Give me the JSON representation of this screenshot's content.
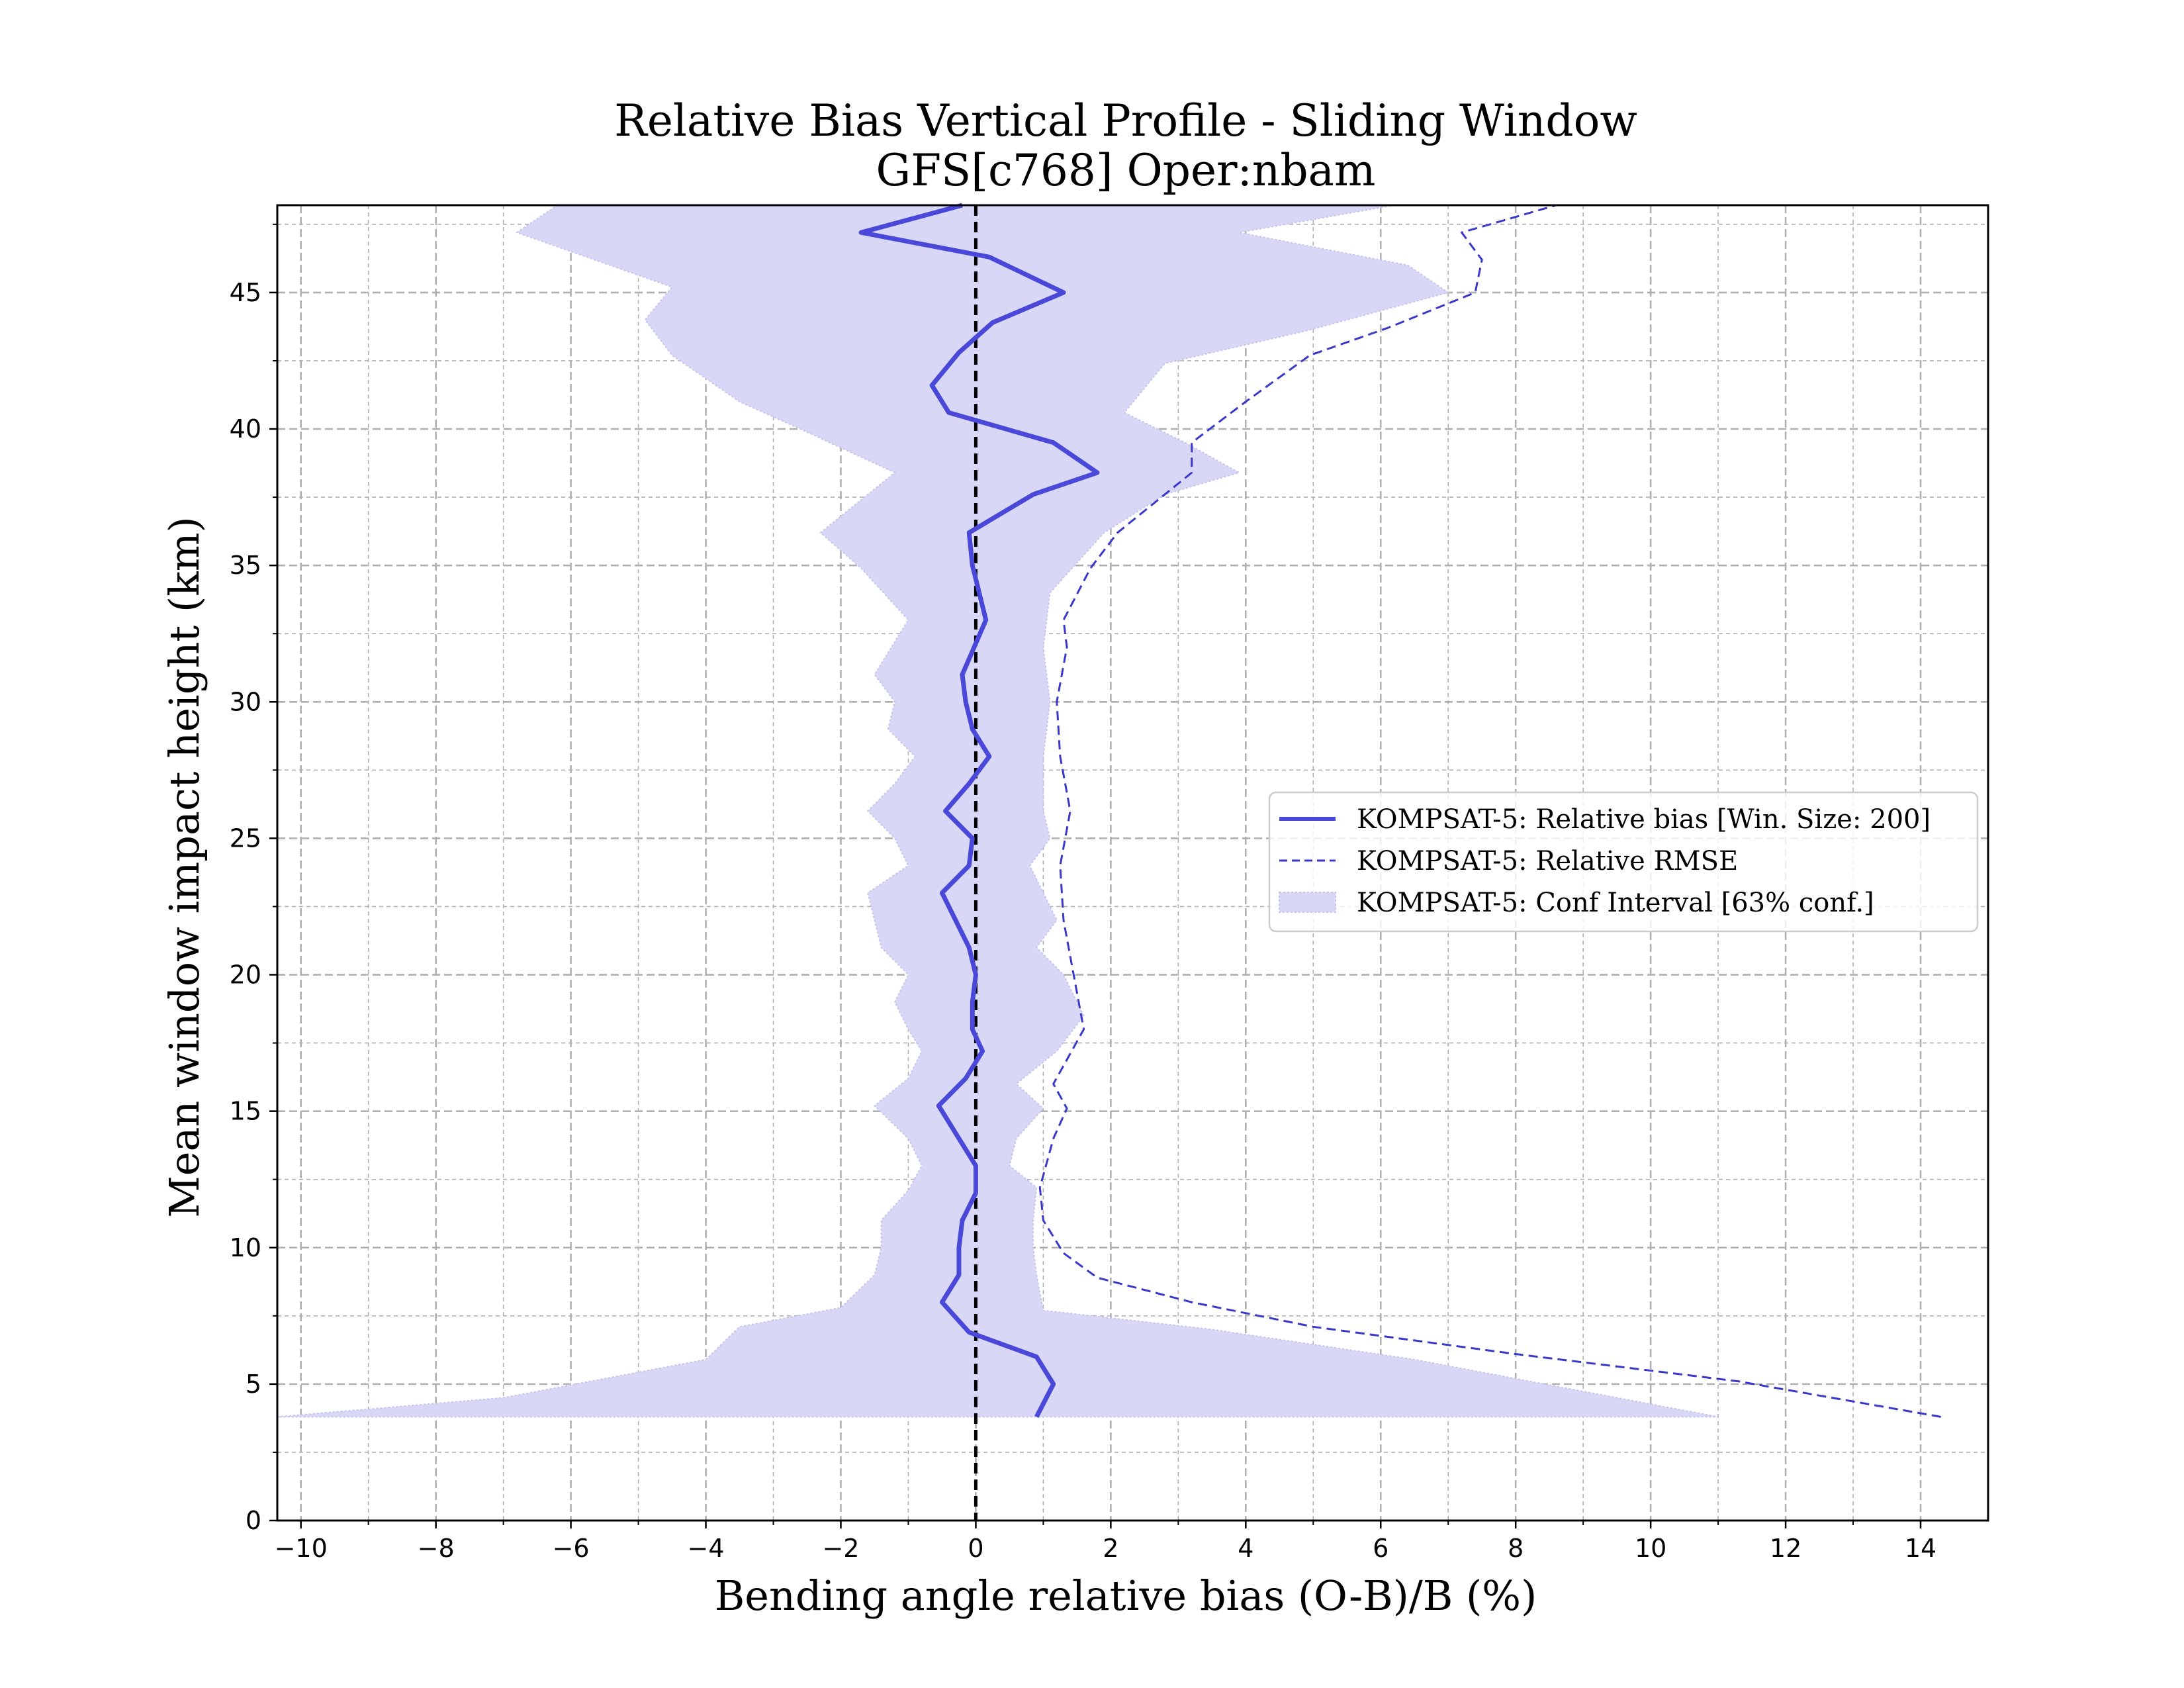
{
  "chart_data": {
    "type": "line",
    "title": "Relative Bias Vertical Profile - Sliding Window",
    "subtitle": "GFS[c768] Oper:nbam",
    "xlabel": "Bending angle relative bias (O-B)/B (%)",
    "ylabel": "Mean window impact height (km)",
    "xlim": [
      -10.35,
      15.0
    ],
    "ylim": [
      0,
      48.2
    ],
    "x_ticks": [
      "−10",
      "−8",
      "−6",
      "−4",
      "−2",
      "0",
      "2",
      "4",
      "6",
      "8",
      "10",
      "12",
      "14"
    ],
    "y_ticks": [
      "0",
      "5",
      "10",
      "15",
      "20",
      "25",
      "30",
      "35",
      "40",
      "45"
    ],
    "grid": true,
    "legend_position": "center-right",
    "reference_line_x": 0,
    "colors": {
      "bias": "#4a48d8",
      "rmse": "#3a38c8",
      "ci_fill": "#d8d8f6",
      "ci_edge": "#c4c4ee",
      "zero_line": "#000000",
      "grid": "#b0b0b0"
    },
    "series": [
      {
        "name": "KOMPSAT-5: Relative bias [Win. Size: 200]",
        "style": "solid",
        "points": [
          {
            "x": 0.9,
            "y": 3.8
          },
          {
            "x": 1.15,
            "y": 5.0
          },
          {
            "x": 0.9,
            "y": 6.0
          },
          {
            "x": -0.1,
            "y": 6.9
          },
          {
            "x": -0.5,
            "y": 8.0
          },
          {
            "x": -0.25,
            "y": 9.0
          },
          {
            "x": -0.25,
            "y": 10.0
          },
          {
            "x": -0.2,
            "y": 11.0
          },
          {
            "x": 0.0,
            "y": 12.0
          },
          {
            "x": 0.0,
            "y": 13.0
          },
          {
            "x": -0.35,
            "y": 14.4
          },
          {
            "x": -0.55,
            "y": 15.2
          },
          {
            "x": -0.15,
            "y": 16.2
          },
          {
            "x": 0.1,
            "y": 17.2
          },
          {
            "x": -0.05,
            "y": 18.0
          },
          {
            "x": -0.05,
            "y": 19.0
          },
          {
            "x": 0.0,
            "y": 20.0
          },
          {
            "x": -0.1,
            "y": 21.0
          },
          {
            "x": -0.5,
            "y": 23.0
          },
          {
            "x": -0.1,
            "y": 24.0
          },
          {
            "x": -0.05,
            "y": 25.0
          },
          {
            "x": -0.45,
            "y": 26.0
          },
          {
            "x": -0.1,
            "y": 27.0
          },
          {
            "x": 0.2,
            "y": 28.0
          },
          {
            "x": -0.05,
            "y": 29.0
          },
          {
            "x": -0.15,
            "y": 30.0
          },
          {
            "x": -0.2,
            "y": 31.0
          },
          {
            "x": 0.15,
            "y": 33.0
          },
          {
            "x": -0.05,
            "y": 35.0
          },
          {
            "x": -0.1,
            "y": 36.2
          },
          {
            "x": 0.85,
            "y": 37.6
          },
          {
            "x": 1.8,
            "y": 38.4
          },
          {
            "x": 1.15,
            "y": 39.5
          },
          {
            "x": -0.4,
            "y": 40.6
          },
          {
            "x": -0.65,
            "y": 41.6
          },
          {
            "x": -0.25,
            "y": 42.8
          },
          {
            "x": 0.25,
            "y": 43.9
          },
          {
            "x": 1.3,
            "y": 45.0
          },
          {
            "x": 0.2,
            "y": 46.3
          },
          {
            "x": -1.7,
            "y": 47.2
          },
          {
            "x": -0.2,
            "y": 48.2
          }
        ]
      },
      {
        "name": "KOMPSAT-5: Relative RMSE",
        "style": "dashed",
        "points": [
          {
            "x": 14.3,
            "y": 3.8
          },
          {
            "x": 11.3,
            "y": 5.1
          },
          {
            "x": 8.0,
            "y": 6.1
          },
          {
            "x": 5.0,
            "y": 7.1
          },
          {
            "x": 3.2,
            "y": 8.0
          },
          {
            "x": 1.8,
            "y": 8.9
          },
          {
            "x": 1.3,
            "y": 9.8
          },
          {
            "x": 1.0,
            "y": 11.0
          },
          {
            "x": 0.95,
            "y": 12.2
          },
          {
            "x": 1.15,
            "y": 14.0
          },
          {
            "x": 1.35,
            "y": 15.1
          },
          {
            "x": 1.15,
            "y": 16.0
          },
          {
            "x": 1.6,
            "y": 18.0
          },
          {
            "x": 1.45,
            "y": 20.0
          },
          {
            "x": 1.3,
            "y": 22.0
          },
          {
            "x": 1.25,
            "y": 24.0
          },
          {
            "x": 1.4,
            "y": 26.0
          },
          {
            "x": 1.25,
            "y": 28.0
          },
          {
            "x": 1.2,
            "y": 30.0
          },
          {
            "x": 1.35,
            "y": 32.0
          },
          {
            "x": 1.3,
            "y": 33.0
          },
          {
            "x": 1.7,
            "y": 34.9
          },
          {
            "x": 2.1,
            "y": 36.2
          },
          {
            "x": 3.2,
            "y": 38.4
          },
          {
            "x": 3.2,
            "y": 39.5
          },
          {
            "x": 4.0,
            "y": 41.0
          },
          {
            "x": 4.95,
            "y": 42.7
          },
          {
            "x": 6.1,
            "y": 43.7
          },
          {
            "x": 7.4,
            "y": 45.0
          },
          {
            "x": 7.5,
            "y": 46.2
          },
          {
            "x": 7.2,
            "y": 47.2
          },
          {
            "x": 8.6,
            "y": 48.2
          }
        ]
      }
    ],
    "confidence_interval": {
      "name": "KOMPSAT-5: Conf Interval [63% conf.]",
      "lower": [
        {
          "x": -10.35,
          "y": 3.8
        },
        {
          "x": -7.0,
          "y": 4.5
        },
        {
          "x": -4.0,
          "y": 5.9
        },
        {
          "x": -3.5,
          "y": 7.1
        },
        {
          "x": -2.0,
          "y": 7.8
        },
        {
          "x": -1.5,
          "y": 9.0
        },
        {
          "x": -1.4,
          "y": 10.0
        },
        {
          "x": -1.4,
          "y": 11.0
        },
        {
          "x": -1.0,
          "y": 12.1
        },
        {
          "x": -0.8,
          "y": 13.0
        },
        {
          "x": -1.0,
          "y": 14.0
        },
        {
          "x": -1.5,
          "y": 15.2
        },
        {
          "x": -1.0,
          "y": 16.2
        },
        {
          "x": -0.8,
          "y": 17.2
        },
        {
          "x": -1.0,
          "y": 18.0
        },
        {
          "x": -1.2,
          "y": 19.0
        },
        {
          "x": -1.0,
          "y": 20.0
        },
        {
          "x": -1.4,
          "y": 21.0
        },
        {
          "x": -1.6,
          "y": 23.0
        },
        {
          "x": -1.0,
          "y": 24.0
        },
        {
          "x": -1.2,
          "y": 25.0
        },
        {
          "x": -1.6,
          "y": 26.0
        },
        {
          "x": -1.2,
          "y": 27.0
        },
        {
          "x": -0.9,
          "y": 28.0
        },
        {
          "x": -1.3,
          "y": 29.0
        },
        {
          "x": -1.2,
          "y": 30.0
        },
        {
          "x": -1.5,
          "y": 31.0
        },
        {
          "x": -1.0,
          "y": 33.0
        },
        {
          "x": -1.7,
          "y": 34.9
        },
        {
          "x": -2.3,
          "y": 36.2
        },
        {
          "x": -1.2,
          "y": 38.4
        },
        {
          "x": -2.6,
          "y": 40.0
        },
        {
          "x": -3.5,
          "y": 41.0
        },
        {
          "x": -4.5,
          "y": 42.7
        },
        {
          "x": -4.9,
          "y": 44.0
        },
        {
          "x": -4.5,
          "y": 45.2
        },
        {
          "x": -6.8,
          "y": 47.2
        },
        {
          "x": -6.2,
          "y": 48.2
        }
      ],
      "upper": [
        {
          "x": 11.0,
          "y": 3.8
        },
        {
          "x": 6.5,
          "y": 5.9
        },
        {
          "x": 3.5,
          "y": 7.0
        },
        {
          "x": 1.0,
          "y": 7.7
        },
        {
          "x": 0.9,
          "y": 9.0
        },
        {
          "x": 0.85,
          "y": 10.0
        },
        {
          "x": 0.85,
          "y": 11.0
        },
        {
          "x": 0.9,
          "y": 12.2
        },
        {
          "x": 0.5,
          "y": 13.0
        },
        {
          "x": 0.6,
          "y": 14.0
        },
        {
          "x": 1.0,
          "y": 15.1
        },
        {
          "x": 0.6,
          "y": 16.0
        },
        {
          "x": 1.2,
          "y": 17.2
        },
        {
          "x": 1.6,
          "y": 18.5
        },
        {
          "x": 1.3,
          "y": 20.0
        },
        {
          "x": 0.9,
          "y": 21.0
        },
        {
          "x": 1.2,
          "y": 22.0
        },
        {
          "x": 0.8,
          "y": 24.0
        },
        {
          "x": 1.1,
          "y": 25.0
        },
        {
          "x": 1.0,
          "y": 26.0
        },
        {
          "x": 1.0,
          "y": 28.0
        },
        {
          "x": 1.1,
          "y": 30.0
        },
        {
          "x": 1.0,
          "y": 32.0
        },
        {
          "x": 1.1,
          "y": 34.0
        },
        {
          "x": 1.9,
          "y": 36.2
        },
        {
          "x": 2.8,
          "y": 37.6
        },
        {
          "x": 3.9,
          "y": 38.4
        },
        {
          "x": 3.1,
          "y": 39.5
        },
        {
          "x": 2.2,
          "y": 40.6
        },
        {
          "x": 2.8,
          "y": 42.4
        },
        {
          "x": 4.9,
          "y": 43.6
        },
        {
          "x": 7.0,
          "y": 45.0
        },
        {
          "x": 6.4,
          "y": 46.0
        },
        {
          "x": 3.9,
          "y": 47.2
        },
        {
          "x": 6.2,
          "y": 48.2
        }
      ]
    }
  }
}
